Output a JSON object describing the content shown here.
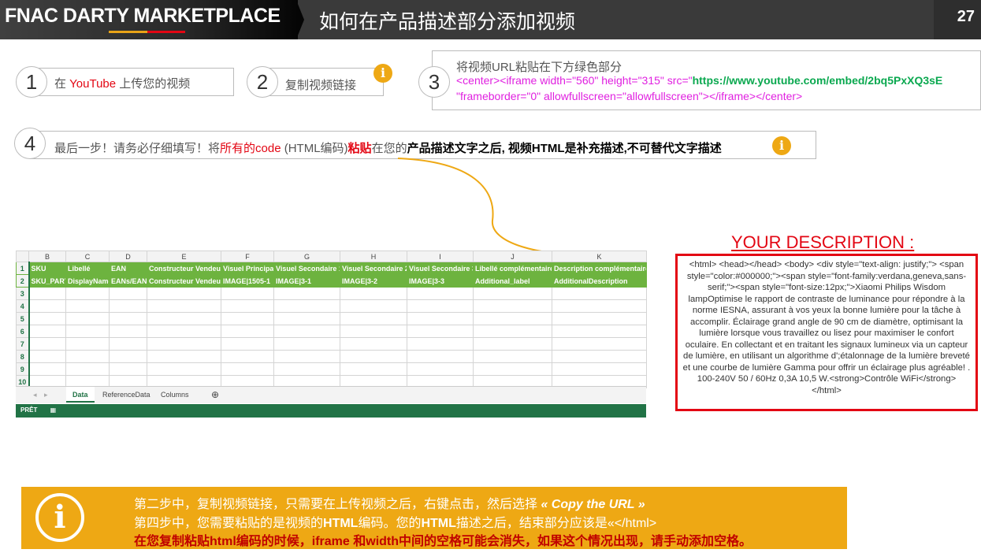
{
  "header": {
    "logo": "FNAC DARTY  MARKETPLACE",
    "title": "如何在产品描述部分添加视频",
    "page_number": "27"
  },
  "steps": [
    {
      "num": "1",
      "pre": "在 ",
      "highlight": "YouTube",
      "post": " 上传您的视频"
    },
    {
      "num": "2",
      "text": "复制视频链接",
      "icon": "info-icon"
    },
    {
      "num": "3",
      "text": "将视频URL粘贴在下方绿色部分",
      "code1": "<center><iframe width=\"560\" height=\"315\" src=\"",
      "url": "https://www.youtube.com/embed/2bq5PxXQ3sE",
      "code2": "\"frameborder=\"0\" allowfullscreen=\"allowfullscreen\"></iframe></center>"
    },
    {
      "num": "4",
      "p1": "最后一步！请务必仔细填写！将",
      "r1": "所有的code",
      "p2": " (HTML编码)",
      "r2": "粘贴",
      "p3": "在您的",
      "b1": "产品描述文字之后, 视频HTML是补充描述,不可替代文字描述",
      "icon": "info-icon"
    }
  ],
  "spreadsheet": {
    "columns": [
      "",
      "B",
      "C",
      "D",
      "E",
      "F",
      "G",
      "H",
      "I",
      "J",
      "K"
    ],
    "row1": [
      "1",
      "SKU",
      "Libellé",
      "EAN",
      "Constructeur Vendeur",
      "Visuel Principal",
      "Visuel Secondaire 1",
      "Visuel Secondaire 2",
      "Visuel Secondaire 3",
      "Libellé complémentaire",
      "Description complémentaire"
    ],
    "row2": [
      "2",
      "SKU_PART",
      "DisplayName",
      "EANs/EAN",
      "Constructeur Vendeur",
      "IMAGE|1505-1",
      "IMAGE|3-1",
      "IMAGE|3-2",
      "IMAGE|3-3",
      "Additional_label",
      "AdditionalDescription"
    ],
    "empty_rows": [
      "3",
      "4",
      "5",
      "6",
      "7",
      "8",
      "9",
      "10"
    ],
    "tabs": [
      "Data",
      "ReferenceData",
      "Columns"
    ],
    "active_tab": "Data",
    "status": "PRÊT"
  },
  "description": {
    "title": "YOUR DESCRIPTION :",
    "text": "<html> <head></head> <body> <div style=\"text-align: justify;\"> <span style=\"color:#000000;\"><span style=\"font-family:verdana,geneva,sans-serif;\"><span style=\"font-size:12px;\">Xiaomi Philips Wisdom lampOptimise le rapport de contraste de luminance pour répondre à la norme IESNA, assurant à vos yeux la bonne lumière pour la tâche à accomplir. Éclairage grand angle de 90 cm de diamètre, optimisant la lumière lorsque vous travaillez ou lisez pour maximiser le confort oculaire. En collectant et en traitant les signaux lumineux via un capteur de lumière, en utilisant un algorithme d';étalonnage de la lumière breveté et une courbe de lumière Gamma pour offrir un éclairage plus agréable! . 100-240V 50 / 60Hz 0,3A 10,5 W.<strong>Contrôle WiFi</strong></html>"
  },
  "note": {
    "line1": "第二步中，复制视频链接，只需要在上传视频之后，右键点击，然后选择 ",
    "line1_b": "« Copy the URL »",
    "line2a": "第四步中，您需要粘贴的是视频的",
    "line2b": "HTML",
    "line2c": "编码。您的",
    "line2d": "HTML",
    "line2e": "描述之后，结束部分应该是«</html>",
    "line3": "在您复制粘贴html编码的时候，iframe 和width中间的空格可能会消失，如果这个情况出现，请手动添加空格。"
  },
  "colors": {
    "accent": "#eea814",
    "red": "#e30613",
    "sheet_green": "#6db33f",
    "excel_green": "#217346"
  }
}
